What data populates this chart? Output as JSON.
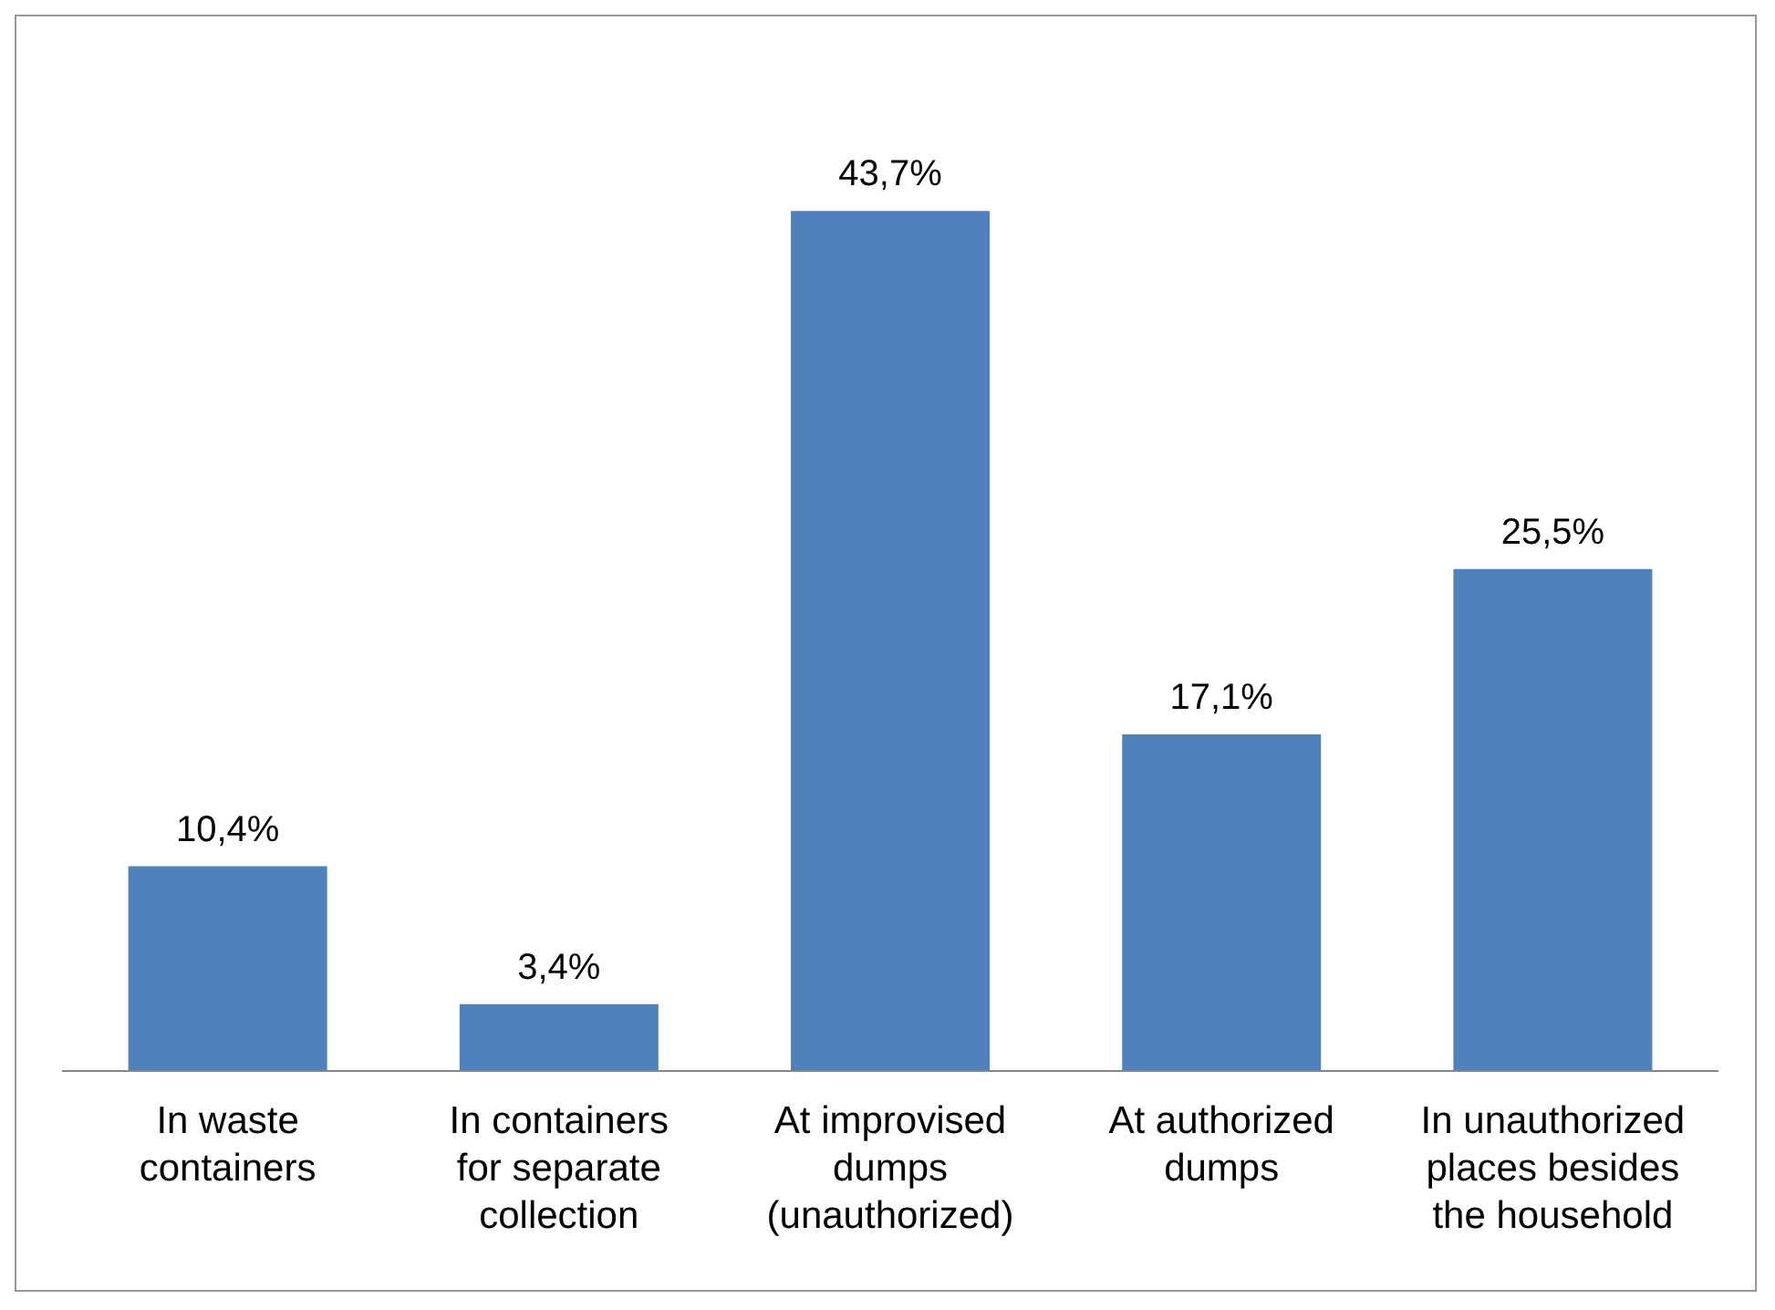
{
  "chart_data": {
    "type": "bar",
    "categories": [
      "In waste containers",
      "In containers for separate collection",
      "At improvised dumps (unauthorized)",
      "At authorized dumps",
      "In unauthorized places besides the household"
    ],
    "values": [
      10.4,
      3.4,
      43.7,
      17.1,
      25.5
    ],
    "value_labels": [
      "10,4%",
      "3,4%",
      "43,7%",
      "17,1%",
      "25,5%"
    ],
    "color": "#4f81bd",
    "grid": false,
    "legend": false
  }
}
